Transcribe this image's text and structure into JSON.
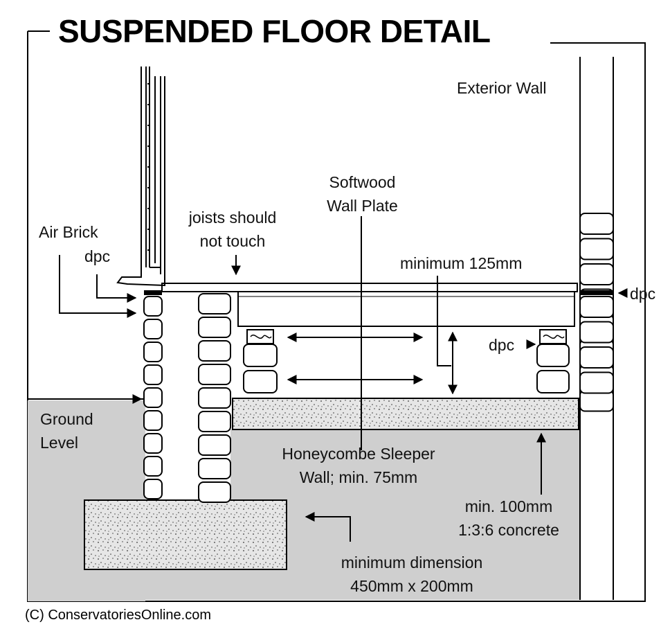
{
  "title": "SUSPENDED FLOOR DETAIL",
  "labels": {
    "exterior_wall": "Exterior Wall",
    "softwood_line1": "Softwood",
    "softwood_line2": "Wall Plate",
    "joists_line1": "joists should",
    "joists_line2": "not touch",
    "air_brick": "Air Brick",
    "dpc_left": "dpc",
    "minimum_125": "minimum 125mm",
    "dpc_right_outer": "dpc",
    "dpc_right_inner": "dpc",
    "ground_line1": "Ground",
    "ground_line2": "Level",
    "honeycombe_line1": "Honeycombe Sleeper",
    "honeycombe_line2": "Wall; min. 75mm",
    "concrete_line1": "min. 100mm",
    "concrete_line2": "1:3:6 concrete",
    "dimension_line1": "minimum dimension",
    "dimension_line2": "450mm x 200mm"
  },
  "copyright": "(C) ConservatoriesOnline.com",
  "colors": {
    "ground": "#cfcfcf",
    "concrete": "#e6e6e6",
    "line": "#000000",
    "background": "#ffffff"
  }
}
